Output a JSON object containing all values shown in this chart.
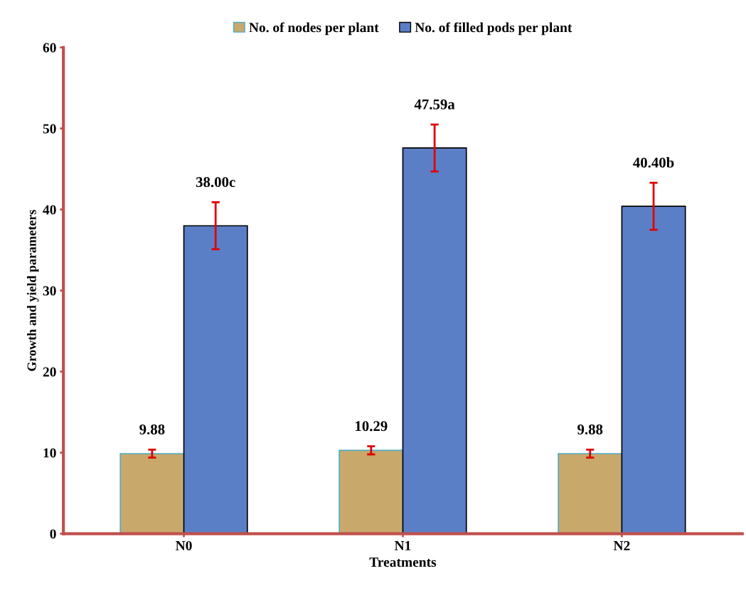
{
  "chart_data": {
    "type": "bar",
    "xlabel": "Treatments",
    "ylabel": "Growth and yield parameters",
    "categories": [
      "N0",
      "N1",
      "N2"
    ],
    "series": [
      {
        "name": "No. of nodes per plant",
        "color": "#c9a86c",
        "values": [
          9.88,
          10.29,
          9.88
        ],
        "errors": [
          0.5,
          0.5,
          0.5
        ],
        "value_labels": [
          "9.88",
          "10.29",
          "9.88"
        ]
      },
      {
        "name": "No. of filled pods per plant",
        "color": "#5b7fc7",
        "values": [
          38.0,
          47.59,
          40.4
        ],
        "errors": [
          2.9,
          2.9,
          2.9
        ],
        "value_labels": [
          "38.00c",
          "47.59a",
          "40.40b"
        ]
      }
    ],
    "ylim": [
      0,
      60
    ],
    "yticks": [
      0,
      10,
      20,
      30,
      40,
      50,
      60
    ],
    "grid": false,
    "legend": "top"
  }
}
